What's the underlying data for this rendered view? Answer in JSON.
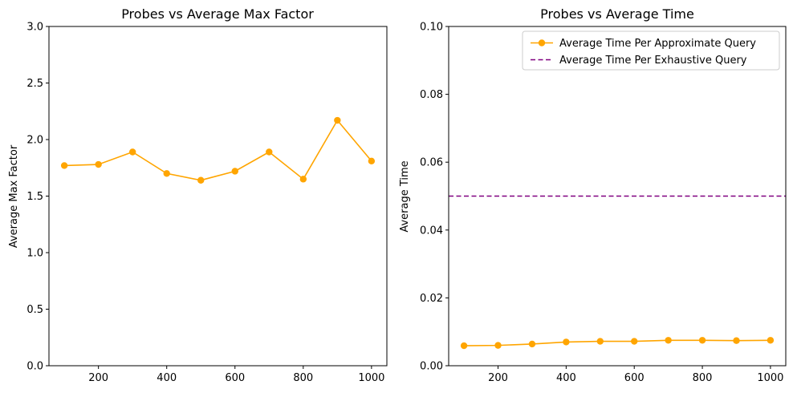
{
  "chart_data": [
    {
      "type": "line",
      "title": "Probes vs Average Max Factor",
      "xlabel": "",
      "ylabel": "Average Max Factor",
      "xlim": [
        55,
        1045
      ],
      "ylim": [
        0,
        3.0
      ],
      "xticks": [
        200,
        400,
        600,
        800,
        1000
      ],
      "yticks": [
        0.0,
        0.5,
        1.0,
        1.5,
        2.0,
        2.5,
        3.0
      ],
      "ytick_labels": [
        "0.0",
        "0.5",
        "1.0",
        "1.5",
        "2.0",
        "2.5",
        "3.0"
      ],
      "grid": false,
      "series": [
        {
          "color": "#ffa500",
          "marker": "circle",
          "linestyle": "solid",
          "x": [
            100,
            200,
            300,
            400,
            500,
            600,
            700,
            800,
            900,
            1000
          ],
          "values": [
            1.77,
            1.78,
            1.89,
            1.7,
            1.64,
            1.72,
            1.89,
            1.65,
            2.17,
            1.81
          ]
        }
      ]
    },
    {
      "type": "line",
      "title": "Probes vs Average Time",
      "xlabel": "",
      "ylabel": "Average Time",
      "xlim": [
        55,
        1045
      ],
      "ylim": [
        0,
        0.1
      ],
      "xticks": [
        200,
        400,
        600,
        800,
        1000
      ],
      "yticks": [
        0.0,
        0.02,
        0.04,
        0.06,
        0.08,
        0.1
      ],
      "ytick_labels": [
        "0.00",
        "0.02",
        "0.04",
        "0.06",
        "0.08",
        "0.10"
      ],
      "grid": false,
      "legend_position": "top-right",
      "series": [
        {
          "name": "Average Time Per Approximate Query",
          "color": "#ffa500",
          "marker": "circle",
          "linestyle": "solid",
          "x": [
            100,
            200,
            300,
            400,
            500,
            600,
            700,
            800,
            900,
            1000
          ],
          "values": [
            0.0059,
            0.006,
            0.0064,
            0.007,
            0.0072,
            0.0072,
            0.0075,
            0.0075,
            0.0074,
            0.0075
          ]
        },
        {
          "name": "Average Time Per Exhaustive Query",
          "color": "#800080",
          "marker": "none",
          "linestyle": "dashed",
          "hline": 0.05
        }
      ]
    }
  ]
}
